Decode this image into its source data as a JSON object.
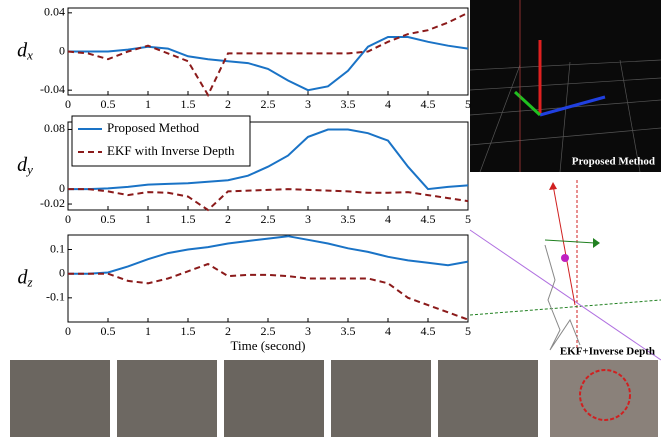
{
  "chart_data": [
    {
      "type": "line",
      "ylabel": "d",
      "ylabel_sub": "x",
      "x": [
        0,
        0.25,
        0.5,
        0.75,
        1,
        1.25,
        1.5,
        1.75,
        2,
        2.25,
        2.5,
        2.75,
        3,
        3.25,
        3.5,
        3.75,
        4,
        4.25,
        4.5,
        4.75,
        5
      ],
      "xlim": [
        0,
        5
      ],
      "xticks": [
        0,
        0.5,
        1,
        1.5,
        2,
        2.5,
        3,
        3.5,
        4,
        4.5,
        5
      ],
      "ylim": [
        -0.045,
        0.045
      ],
      "yticks": [
        -0.04,
        0,
        0.04
      ],
      "series": [
        {
          "color": "#1a73c6",
          "dashed": false,
          "values": [
            0,
            0,
            0,
            0.002,
            0.005,
            0.003,
            -0.005,
            -0.008,
            -0.01,
            -0.012,
            -0.018,
            -0.03,
            -0.04,
            -0.036,
            -0.02,
            0.005,
            0.015,
            0.015,
            0.01,
            0.006,
            0.003
          ]
        },
        {
          "color": "#8b1a1a",
          "dashed": true,
          "values": [
            0,
            -0.002,
            -0.008,
            0,
            0.006,
            -0.002,
            -0.01,
            -0.045,
            -0.002,
            -0.002,
            -0.002,
            -0.002,
            -0.002,
            -0.002,
            -0.002,
            0,
            0.01,
            0.018,
            0.022,
            0.03,
            0.04
          ]
        }
      ]
    },
    {
      "type": "line",
      "ylabel": "d",
      "ylabel_sub": "y",
      "x": [
        0,
        0.25,
        0.5,
        0.75,
        1,
        1.25,
        1.5,
        1.75,
        2,
        2.25,
        2.5,
        2.75,
        3,
        3.25,
        3.5,
        3.75,
        4,
        4.25,
        4.5,
        4.75,
        5
      ],
      "xlim": [
        0,
        5
      ],
      "xticks": [
        0,
        0.5,
        1,
        1.5,
        2,
        2.5,
        3,
        3.5,
        4,
        4.5,
        5
      ],
      "ylim": [
        -0.028,
        0.09
      ],
      "yticks": [
        -0.02,
        0,
        0.08
      ],
      "series": [
        {
          "name": "Proposed Method",
          "color": "#1a73c6",
          "dashed": false,
          "values": [
            0,
            0,
            0.001,
            0.003,
            0.006,
            0.007,
            0.008,
            0.01,
            0.012,
            0.018,
            0.03,
            0.045,
            0.07,
            0.08,
            0.08,
            0.075,
            0.065,
            0.03,
            0,
            0.003,
            0.005
          ]
        },
        {
          "name": "EKF with Inverse Depth",
          "color": "#8b1a1a",
          "dashed": true,
          "values": [
            0,
            0,
            -0.003,
            -0.008,
            -0.004,
            -0.005,
            -0.01,
            -0.028,
            -0.003,
            -0.002,
            -0.001,
            0,
            -0.001,
            -0.002,
            -0.003,
            -0.005,
            -0.005,
            -0.004,
            -0.008,
            -0.012,
            -0.016
          ]
        }
      ]
    },
    {
      "type": "line",
      "ylabel": "d",
      "ylabel_sub": "z",
      "xlabel": "Time (second)",
      "x": [
        0,
        0.25,
        0.5,
        0.75,
        1,
        1.25,
        1.5,
        1.75,
        2,
        2.25,
        2.5,
        2.75,
        3,
        3.25,
        3.5,
        3.75,
        4,
        4.25,
        4.5,
        4.75,
        5
      ],
      "xlim": [
        0,
        5
      ],
      "xticks": [
        0,
        0.5,
        1,
        1.5,
        2,
        2.5,
        3,
        3.5,
        4,
        4.5,
        5
      ],
      "ylim": [
        -0.2,
        0.16
      ],
      "yticks": [
        -0.1,
        0,
        0.1
      ],
      "series": [
        {
          "color": "#1a73c6",
          "dashed": false,
          "values": [
            0,
            0,
            0.005,
            0.03,
            0.06,
            0.085,
            0.1,
            0.11,
            0.125,
            0.135,
            0.145,
            0.155,
            0.14,
            0.125,
            0.105,
            0.09,
            0.07,
            0.055,
            0.045,
            0.035,
            0.05
          ]
        },
        {
          "color": "#8b1a1a",
          "dashed": true,
          "values": [
            0,
            0,
            0,
            -0.03,
            -0.04,
            -0.02,
            0.01,
            0.04,
            -0.01,
            -0.005,
            -0.005,
            -0.01,
            -0.02,
            -0.02,
            -0.02,
            -0.02,
            -0.04,
            -0.1,
            -0.13,
            -0.16,
            -0.19
          ]
        }
      ]
    }
  ],
  "panels": {
    "top_label": "Proposed Method",
    "bottom_label": "EKF+Inverse Depth"
  }
}
